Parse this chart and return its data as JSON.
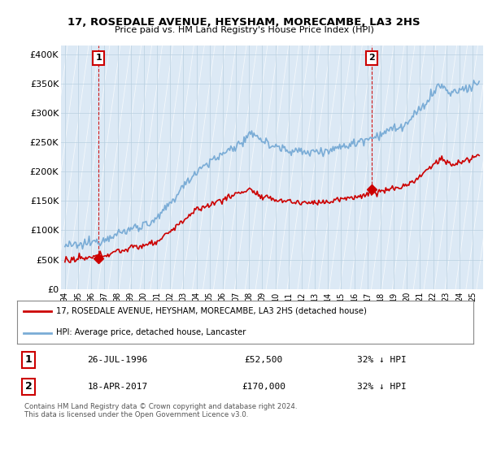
{
  "title": "17, ROSEDALE AVENUE, HEYSHAM, MORECAMBE, LA3 2HS",
  "subtitle": "Price paid vs. HM Land Registry's House Price Index (HPI)",
  "ylabel_ticks": [
    "£0",
    "£50K",
    "£100K",
    "£150K",
    "£200K",
    "£250K",
    "£300K",
    "£350K",
    "£400K"
  ],
  "ytick_values": [
    0,
    50000,
    100000,
    150000,
    200000,
    250000,
    300000,
    350000,
    400000
  ],
  "ylim": [
    0,
    415000
  ],
  "xlim_start": 1993.7,
  "xlim_end": 2025.8,
  "hpi_color": "#7aacd6",
  "price_color": "#cc0000",
  "sale1_x": 1996.57,
  "sale1_y": 52500,
  "sale1_label": "1",
  "sale2_x": 2017.3,
  "sale2_y": 170000,
  "sale2_label": "2",
  "legend_line1": "17, ROSEDALE AVENUE, HEYSHAM, MORECAMBE, LA3 2HS (detached house)",
  "legend_line2": "HPI: Average price, detached house, Lancaster",
  "table_row1": [
    "1",
    "26-JUL-1996",
    "£52,500",
    "32% ↓ HPI"
  ],
  "table_row2": [
    "2",
    "18-APR-2017",
    "£170,000",
    "32% ↓ HPI"
  ],
  "footnote": "Contains HM Land Registry data © Crown copyright and database right 2024.\nThis data is licensed under the Open Government Licence v3.0.",
  "background_color": "#ffffff",
  "plot_bg_color": "#dce9f5",
  "grid_color": "#b8cfe0",
  "hatch_line_color": "#c8d8ea"
}
